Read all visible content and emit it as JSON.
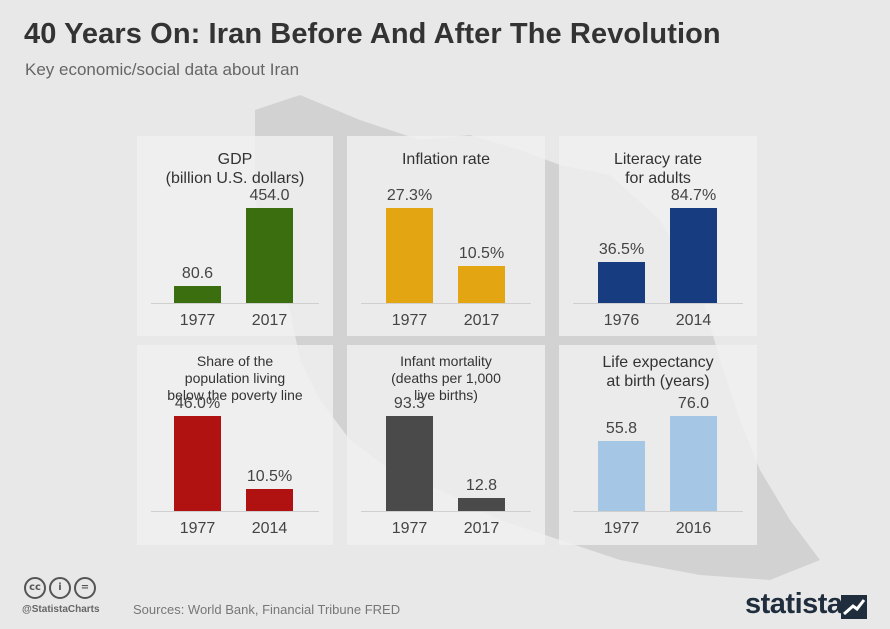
{
  "header": {
    "title": "40 Years On: Iran Before And After The Revolution",
    "subtitle": "Key economic/social data about Iran"
  },
  "chart_data": [
    {
      "type": "bar",
      "title_lines": [
        "GDP",
        "(billion U.S. dollars)"
      ],
      "categories": [
        "1977",
        "2017"
      ],
      "values": [
        80.6,
        454.0
      ],
      "labels": [
        "80.6",
        "454.0"
      ],
      "color": "#3b6e0f"
    },
    {
      "type": "bar",
      "title_lines": [
        "Inflation rate"
      ],
      "categories": [
        "1977",
        "2017"
      ],
      "values": [
        27.3,
        10.5
      ],
      "labels": [
        "27.3%",
        "10.5%"
      ],
      "color": "#e3a512"
    },
    {
      "type": "bar",
      "title_lines": [
        "Literacy rate",
        "for adults"
      ],
      "categories": [
        "1976",
        "2014"
      ],
      "values": [
        36.5,
        84.7
      ],
      "labels": [
        "36.5%",
        "84.7%"
      ],
      "color": "#173d80"
    },
    {
      "type": "bar",
      "title_lines": [
        "Share of the",
        "population living",
        "below the poverty line"
      ],
      "categories": [
        "1977",
        "2014"
      ],
      "values": [
        46.0,
        10.5
      ],
      "labels": [
        "46.0%",
        "10.5%"
      ],
      "color": "#b01111"
    },
    {
      "type": "bar",
      "title_lines": [
        "Infant mortality",
        "(deaths per 1,000",
        "live births)"
      ],
      "categories": [
        "1977",
        "2017"
      ],
      "values": [
        93.3,
        12.8
      ],
      "labels": [
        "93.3",
        "12.8"
      ],
      "color": "#4a4a4a"
    },
    {
      "type": "bar",
      "title_lines": [
        "Life expectancy",
        "at birth (years)"
      ],
      "categories": [
        "1977",
        "2016"
      ],
      "values": [
        55.8,
        76.0
      ],
      "labels": [
        "55.8",
        "76.0"
      ],
      "color": "#a6c6e6"
    }
  ],
  "footer": {
    "icons": [
      "creative-commons-icon",
      "attribution-icon",
      "no-derivatives-icon"
    ],
    "icon_glyphs": [
      "cc",
      "i",
      "="
    ],
    "handle": "@StatistaCharts",
    "sources": "Sources: World Bank, Financial Tribune FRED",
    "brand": "statista"
  }
}
